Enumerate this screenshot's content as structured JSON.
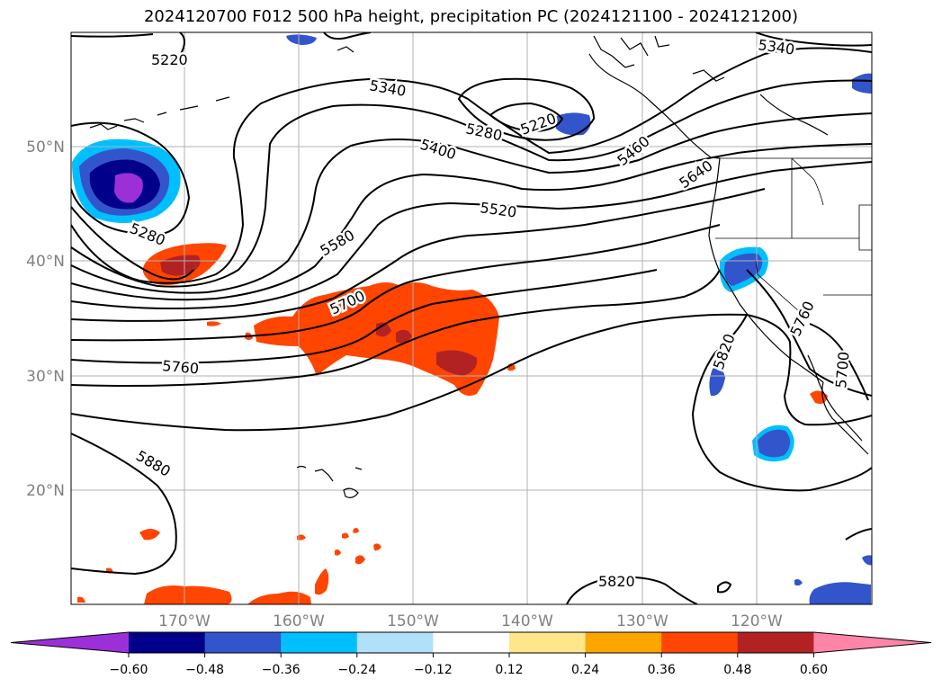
{
  "title": "2024120700 F012 500 hPa height, precipitation PC (2024121100 - 2024121200)",
  "map": {
    "lat_labels": [
      "50°N",
      "40°N",
      "30°N",
      "20°N"
    ],
    "lon_labels": [
      "170°W",
      "160°W",
      "150°W",
      "140°W",
      "130°W",
      "120°W"
    ],
    "contour_labels": [
      "5220",
      "5340",
      "5340",
      "5220",
      "5280",
      "5400",
      "5460",
      "5520",
      "5640",
      "5280",
      "5580",
      "5700",
      "5760",
      "5760",
      "5820",
      "5700",
      "5880",
      "5820"
    ]
  },
  "colorbar": {
    "ticks": [
      "−0.60",
      "−0.48",
      "−0.36",
      "−0.24",
      "−0.12",
      "0.12",
      "0.24",
      "0.36",
      "0.48",
      "0.60"
    ],
    "colors": [
      "#9b30d8",
      "#00008b",
      "#3355cc",
      "#00bfff",
      "#b0e0fa",
      "#ffffff",
      "#ffe68a",
      "#ffa500",
      "#ff4500",
      "#b22222",
      "#ff85a8"
    ]
  }
}
